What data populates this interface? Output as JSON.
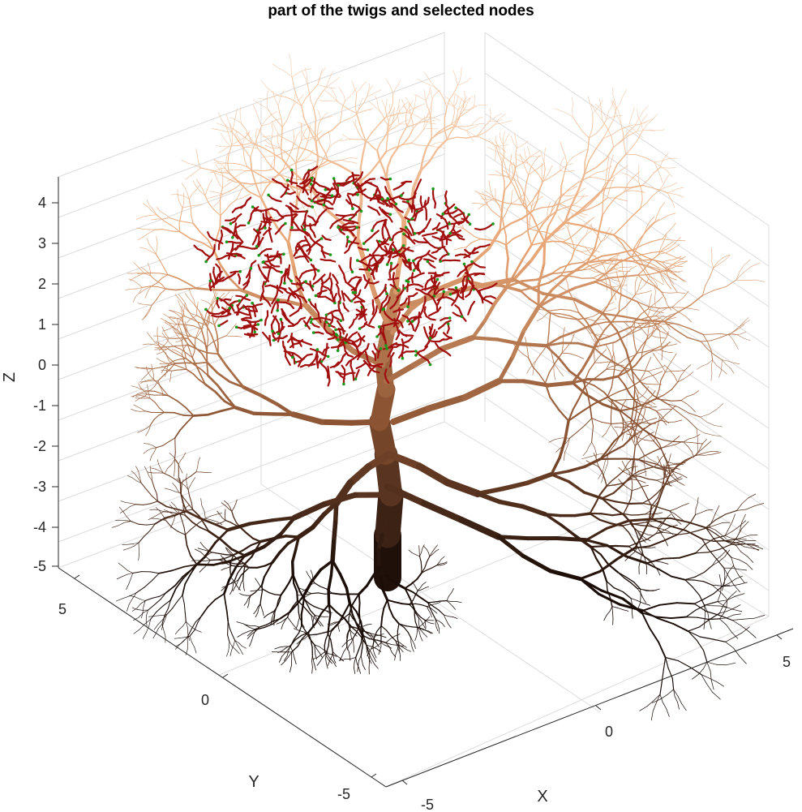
{
  "title": "part of the twigs and selected nodes",
  "axes": {
    "x_label": "X",
    "y_label": "Y",
    "z_label": "Z",
    "x_ticks": [
      "-5",
      "0",
      "5"
    ],
    "y_ticks": [
      "-5",
      "0",
      "5"
    ],
    "z_ticks": [
      "4",
      "3",
      "2",
      "1",
      "0",
      "-1",
      "-2",
      "-3",
      "-4",
      "-5"
    ],
    "x_range": [
      -5,
      5
    ],
    "y_range": [
      -5,
      5
    ],
    "z_range": [
      -5,
      4.5
    ],
    "grid": true
  },
  "colors": {
    "trunk_dark": "#1a0d08",
    "branch_mid": "#8a5232",
    "branch_light": "#e8a676",
    "twig_pale": "#f3c4a0",
    "selected_twigs": "#a10f0f",
    "selected_nodes": "#1a9a1a"
  }
}
